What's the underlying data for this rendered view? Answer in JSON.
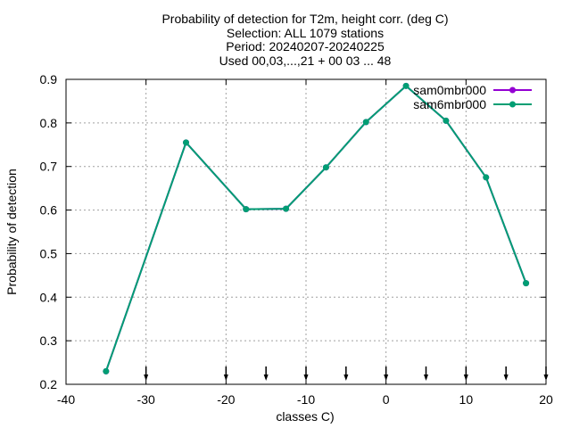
{
  "chart_data": {
    "type": "line",
    "title_lines": [
      "Probability of detection  for T2m, height corr. (deg C)",
      "Selection: ALL   1079 stations",
      "Period: 20240207-20240225",
      "Used 00,03,...,21 + 00 03 ... 48"
    ],
    "xlabel": "classes C)",
    "ylabel": "Probability of detection",
    "xlim": [
      -40,
      20
    ],
    "ylim": [
      0.2,
      0.9
    ],
    "x_ticks": [
      -40,
      -30,
      -20,
      -10,
      0,
      10,
      20
    ],
    "y_ticks": [
      0.2,
      0.3,
      0.4,
      0.5,
      0.6,
      0.7,
      0.8,
      0.9
    ],
    "x_tick_labels": [
      "-40",
      "-30",
      "-20",
      "-10",
      "0",
      "10",
      "20"
    ],
    "y_tick_labels": [
      "0.2",
      "0.3",
      "0.4",
      "0.5",
      "0.6",
      "0.7",
      "0.8",
      "0.9"
    ],
    "grid": true,
    "legend_position": "top-right",
    "series": [
      {
        "name": "sam0mbr000",
        "color": "#9400d3",
        "x": [
          -35,
          -25,
          -17.5,
          -12.5,
          -7.5,
          -2.5,
          2.5,
          7.5,
          12.5,
          17.5
        ],
        "y": [
          0.23,
          0.755,
          0.602,
          0.603,
          0.698,
          0.802,
          0.885,
          0.805,
          0.675,
          0.432
        ]
      },
      {
        "name": "sam6mbr000",
        "color": "#009e73",
        "x": [
          -35,
          -25,
          -17.5,
          -12.5,
          -7.5,
          -2.5,
          2.5,
          7.5,
          12.5,
          17.5
        ],
        "y": [
          0.23,
          0.755,
          0.602,
          0.603,
          0.698,
          0.802,
          0.885,
          0.805,
          0.675,
          0.432
        ]
      }
    ],
    "arrow_markers_x": [
      -30,
      -20,
      -15,
      -10,
      -5,
      0,
      5,
      10,
      15,
      20
    ]
  }
}
